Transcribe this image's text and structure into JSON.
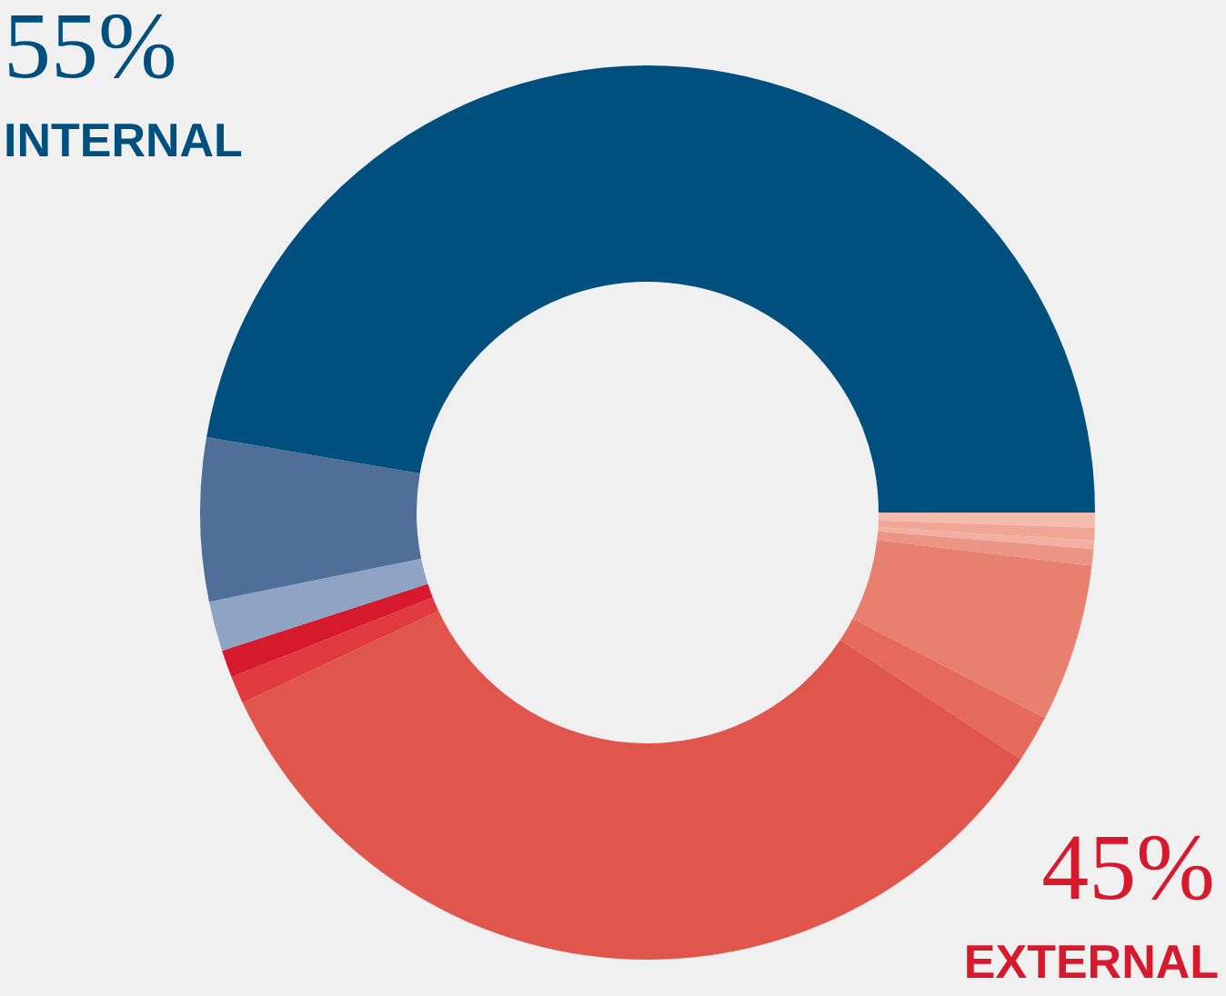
{
  "chart_data": {
    "type": "donut",
    "categories": [
      null,
      null,
      null,
      null,
      null,
      null,
      null,
      null,
      null,
      null,
      null,
      null
    ],
    "values": [
      0.55,
      0.45,
      0.3,
      0.6,
      5.7,
      1.7,
      33.7,
      1.0,
      1.0,
      1.8,
      5.9,
      47.3
    ],
    "colors": [
      "#f4bcae",
      "#f0a595",
      "#f3b0a2",
      "#ec9585",
      "#e8806f",
      "#e66a5c",
      "#e0564d",
      "#e03a3e",
      "#d7192d",
      "#8fa3c2",
      "#4f6f99",
      "#00507f"
    ],
    "annotations": [
      "55%",
      "INTERNAL",
      "45%",
      "EXTERNAL"
    ]
  }
}
